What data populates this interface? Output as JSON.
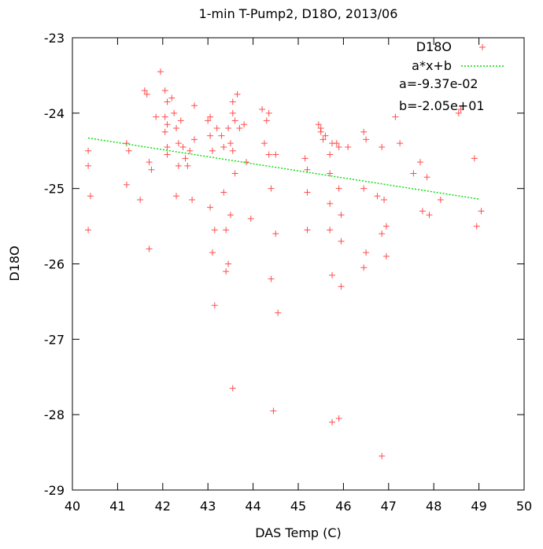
{
  "chart_data": {
    "type": "scatter",
    "title": "1-min T-Pump2, D18O, 2013/06",
    "xlabel": "DAS Temp (C)",
    "ylabel": "D18O",
    "xlim": [
      40,
      50
    ],
    "ylim": [
      -29,
      -23
    ],
    "x_ticks": [
      "40",
      "41",
      "42",
      "43",
      "44",
      "45",
      "46",
      "47",
      "48",
      "49",
      "50"
    ],
    "y_ticks": [
      "-29",
      "-28",
      "-27",
      "-26",
      "-25",
      "-24",
      "-23"
    ],
    "legend_position": "top-right",
    "series": [
      {
        "name": "D18O",
        "marker": "plus",
        "color": "#ff0000",
        "points": [
          [
            40.35,
            -24.5
          ],
          [
            40.35,
            -24.7
          ],
          [
            40.4,
            -25.1
          ],
          [
            40.35,
            -25.55
          ],
          [
            41.2,
            -24.4
          ],
          [
            41.25,
            -24.5
          ],
          [
            41.2,
            -24.95
          ],
          [
            41.5,
            -25.15
          ],
          [
            41.6,
            -23.7
          ],
          [
            41.65,
            -23.75
          ],
          [
            41.7,
            -24.65
          ],
          [
            41.75,
            -24.75
          ],
          [
            41.7,
            -25.8
          ],
          [
            41.85,
            -24.05
          ],
          [
            41.95,
            -23.45
          ],
          [
            42.05,
            -23.7
          ],
          [
            42.1,
            -23.85
          ],
          [
            42.05,
            -24.05
          ],
          [
            42.1,
            -24.15
          ],
          [
            42.05,
            -24.25
          ],
          [
            42.1,
            -24.45
          ],
          [
            42.1,
            -24.55
          ],
          [
            42.2,
            -23.8
          ],
          [
            42.25,
            -24.0
          ],
          [
            42.3,
            -24.2
          ],
          [
            42.35,
            -24.4
          ],
          [
            42.35,
            -24.7
          ],
          [
            42.3,
            -25.1
          ],
          [
            42.4,
            -24.1
          ],
          [
            42.45,
            -24.45
          ],
          [
            42.5,
            -24.6
          ],
          [
            42.55,
            -24.7
          ],
          [
            42.6,
            -24.5
          ],
          [
            42.65,
            -25.15
          ],
          [
            42.7,
            -23.9
          ],
          [
            42.7,
            -24.35
          ],
          [
            43.0,
            -24.1
          ],
          [
            43.05,
            -24.05
          ],
          [
            43.05,
            -24.3
          ],
          [
            43.1,
            -24.5
          ],
          [
            43.05,
            -25.25
          ],
          [
            43.15,
            -25.55
          ],
          [
            43.1,
            -25.85
          ],
          [
            43.15,
            -26.55
          ],
          [
            43.2,
            -24.2
          ],
          [
            43.3,
            -24.3
          ],
          [
            43.35,
            -24.45
          ],
          [
            43.35,
            -25.05
          ],
          [
            43.4,
            -25.55
          ],
          [
            43.4,
            -26.1
          ],
          [
            43.45,
            -24.2
          ],
          [
            43.45,
            -26.0
          ],
          [
            43.5,
            -24.4
          ],
          [
            43.5,
            -25.35
          ],
          [
            43.55,
            -23.85
          ],
          [
            43.55,
            -24.0
          ],
          [
            43.6,
            -24.1
          ],
          [
            43.55,
            -24.5
          ],
          [
            43.6,
            -24.8
          ],
          [
            43.55,
            -27.65
          ],
          [
            43.65,
            -23.75
          ],
          [
            43.7,
            -24.2
          ],
          [
            43.8,
            -24.15
          ],
          [
            43.85,
            -24.65
          ],
          [
            43.95,
            -25.4
          ],
          [
            44.2,
            -23.95
          ],
          [
            44.25,
            -24.4
          ],
          [
            44.3,
            -24.1
          ],
          [
            44.35,
            -24.0
          ],
          [
            44.35,
            -24.55
          ],
          [
            44.4,
            -25.0
          ],
          [
            44.4,
            -26.2
          ],
          [
            44.45,
            -27.95
          ],
          [
            44.5,
            -24.55
          ],
          [
            44.5,
            -25.6
          ],
          [
            44.55,
            -26.65
          ],
          [
            45.15,
            -24.6
          ],
          [
            45.2,
            -24.75
          ],
          [
            45.2,
            -25.05
          ],
          [
            45.2,
            -25.55
          ],
          [
            45.45,
            -24.15
          ],
          [
            45.5,
            -24.2
          ],
          [
            45.5,
            -24.25
          ],
          [
            45.55,
            -24.35
          ],
          [
            45.6,
            -24.3
          ],
          [
            45.7,
            -24.55
          ],
          [
            45.75,
            -24.4
          ],
          [
            45.7,
            -24.8
          ],
          [
            45.7,
            -25.2
          ],
          [
            45.7,
            -25.55
          ],
          [
            45.75,
            -26.15
          ],
          [
            45.75,
            -28.1
          ],
          [
            45.85,
            -24.4
          ],
          [
            45.9,
            -24.45
          ],
          [
            45.9,
            -25.0
          ],
          [
            45.95,
            -25.35
          ],
          [
            45.95,
            -25.7
          ],
          [
            45.95,
            -26.3
          ],
          [
            45.9,
            -28.05
          ],
          [
            46.1,
            -24.45
          ],
          [
            46.45,
            -24.25
          ],
          [
            46.5,
            -24.35
          ],
          [
            46.45,
            -25.0
          ],
          [
            46.5,
            -25.85
          ],
          [
            46.45,
            -26.05
          ],
          [
            46.75,
            -25.1
          ],
          [
            46.85,
            -24.45
          ],
          [
            46.9,
            -25.15
          ],
          [
            46.85,
            -25.6
          ],
          [
            46.95,
            -25.5
          ],
          [
            46.95,
            -25.9
          ],
          [
            46.85,
            -28.55
          ],
          [
            47.15,
            -24.05
          ],
          [
            47.25,
            -24.4
          ],
          [
            47.55,
            -24.8
          ],
          [
            47.7,
            -24.65
          ],
          [
            47.75,
            -25.3
          ],
          [
            47.85,
            -24.85
          ],
          [
            47.9,
            -25.35
          ],
          [
            48.15,
            -25.15
          ],
          [
            48.55,
            -24.0
          ],
          [
            48.6,
            -23.95
          ],
          [
            48.9,
            -24.6
          ],
          [
            48.95,
            -25.5
          ],
          [
            49.05,
            -25.3
          ]
        ]
      },
      {
        "name": "a*x+b",
        "type": "line",
        "color": "#00dd00",
        "x": [
          40.35,
          49.0
        ],
        "y": [
          -24.33,
          -25.14
        ]
      }
    ],
    "annotations": [
      "a=-9.37e-02",
      "b=-2.05e+01"
    ]
  }
}
